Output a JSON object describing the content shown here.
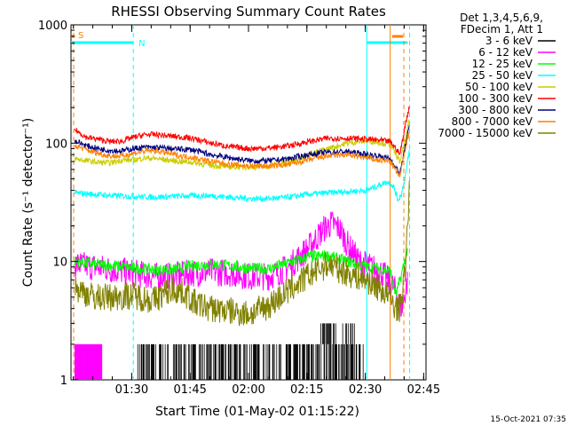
{
  "chart_data": {
    "type": "line",
    "title": "RHESSI Observing Summary Count Rates",
    "xlabel": "Start Time (01-May-02 01:15:22)",
    "ylabel": "Count Rate (s⁻¹ detector⁻¹)",
    "yscale": "log",
    "ylim": [
      1,
      1000
    ],
    "xlim_minutes": [
      0,
      87
    ],
    "y_ticks": [
      {
        "value": 1,
        "label": "1"
      },
      {
        "value": 10,
        "label": "10"
      },
      {
        "value": 100,
        "label": "100"
      },
      {
        "value": 1000,
        "label": "1000"
      }
    ],
    "x_ticks": [
      {
        "t": 14.6,
        "label": "01:30"
      },
      {
        "t": 29.6,
        "label": "01:45"
      },
      {
        "t": 44.6,
        "label": "02:00"
      },
      {
        "t": 59.6,
        "label": "02:15"
      },
      {
        "t": 74.6,
        "label": "02:30"
      },
      {
        "t": 89.6,
        "label": "02:45"
      }
    ],
    "legend": {
      "placement": "right",
      "header": [
        "Det 1,3,4,5,6,9,",
        "FDecim 1, Att 1"
      ]
    },
    "series": [
      {
        "name": "3 - 6 keV",
        "color": "#000000",
        "style": "sparse",
        "points": [
          [
            16,
            1.5
          ],
          [
            20,
            1.6
          ],
          [
            25,
            1.5
          ],
          [
            30,
            1.6
          ],
          [
            35,
            1.5
          ],
          [
            40,
            1.5
          ],
          [
            50,
            1.4
          ],
          [
            55,
            1.5
          ],
          [
            60,
            1.6
          ],
          [
            65,
            2.0
          ],
          [
            70,
            1.6
          ],
          [
            75,
            1.5
          ]
        ]
      },
      {
        "name": "6 - 12 keV",
        "color": "#ff00ff",
        "points": [
          [
            0,
            9.5
          ],
          [
            5,
            9
          ],
          [
            10,
            8.5
          ],
          [
            15,
            8
          ],
          [
            20,
            7.5
          ],
          [
            25,
            7.5
          ],
          [
            30,
            8
          ],
          [
            35,
            8.2
          ],
          [
            40,
            8
          ],
          [
            45,
            7.5
          ],
          [
            50,
            7.5
          ],
          [
            55,
            9
          ],
          [
            60,
            13
          ],
          [
            64,
            19
          ],
          [
            66,
            21
          ],
          [
            68,
            19
          ],
          [
            70,
            14
          ],
          [
            73,
            10
          ],
          [
            76,
            9
          ],
          [
            79,
            8
          ],
          [
            82,
            6
          ],
          [
            84,
            4
          ],
          [
            85.5,
            7
          ]
        ]
      },
      {
        "name": "12 - 25 keV",
        "color": "#00ff00",
        "points": [
          [
            0,
            10
          ],
          [
            5,
            9.5
          ],
          [
            10,
            9.2
          ],
          [
            15,
            8.8
          ],
          [
            20,
            8.5
          ],
          [
            25,
            8.5
          ],
          [
            30,
            9.2
          ],
          [
            35,
            9.5
          ],
          [
            40,
            9.2
          ],
          [
            45,
            8.7
          ],
          [
            50,
            8.7
          ],
          [
            55,
            9.8
          ],
          [
            60,
            11
          ],
          [
            65,
            11.2
          ],
          [
            70,
            10
          ],
          [
            75,
            9
          ],
          [
            78,
            8.8
          ],
          [
            81,
            8.3
          ],
          [
            82.5,
            5.2
          ],
          [
            84,
            8
          ],
          [
            85.5,
            13
          ]
        ]
      },
      {
        "name": "25 - 50 keV",
        "color": "#00ffff",
        "points": [
          [
            0,
            38
          ],
          [
            5,
            37
          ],
          [
            10,
            36
          ],
          [
            15,
            35.5
          ],
          [
            20,
            35
          ],
          [
            25,
            35.5
          ],
          [
            30,
            36
          ],
          [
            35,
            36
          ],
          [
            40,
            35
          ],
          [
            45,
            34
          ],
          [
            50,
            34
          ],
          [
            55,
            35
          ],
          [
            60,
            37
          ],
          [
            65,
            38
          ],
          [
            70,
            39
          ],
          [
            75,
            40
          ],
          [
            78,
            44
          ],
          [
            80,
            47
          ],
          [
            81,
            46
          ],
          [
            82,
            42
          ],
          [
            83,
            33
          ],
          [
            84,
            38
          ],
          [
            85,
            55
          ],
          [
            86,
            90
          ]
        ]
      },
      {
        "name": "50 - 100 keV",
        "color": "#cccc00",
        "points": [
          [
            0,
            74
          ],
          [
            3,
            71
          ],
          [
            6,
            69
          ],
          [
            9,
            68
          ],
          [
            12,
            72
          ],
          [
            15,
            72
          ],
          [
            18,
            75
          ],
          [
            21,
            74
          ],
          [
            24,
            72
          ],
          [
            27,
            70
          ],
          [
            30,
            69
          ],
          [
            35,
            65
          ],
          [
            40,
            63
          ],
          [
            45,
            63
          ],
          [
            50,
            64
          ],
          [
            55,
            70
          ],
          [
            60,
            80
          ],
          [
            65,
            90
          ],
          [
            70,
            100
          ],
          [
            75,
            105
          ],
          [
            78,
            102
          ],
          [
            81,
            97
          ],
          [
            82.5,
            80
          ],
          [
            83.5,
            70
          ],
          [
            85,
            110
          ],
          [
            86,
            160
          ]
        ]
      },
      {
        "name": "100 - 300 keV",
        "color": "#ff0000",
        "points": [
          [
            0,
            130
          ],
          [
            3,
            112
          ],
          [
            6,
            108
          ],
          [
            9,
            103
          ],
          [
            12,
            104
          ],
          [
            15,
            112
          ],
          [
            18,
            118
          ],
          [
            21,
            118
          ],
          [
            24,
            115
          ],
          [
            27,
            113
          ],
          [
            30,
            110
          ],
          [
            35,
            100
          ],
          [
            40,
            93
          ],
          [
            45,
            90
          ],
          [
            50,
            91
          ],
          [
            55,
            95
          ],
          [
            60,
            103
          ],
          [
            65,
            110
          ],
          [
            70,
            110
          ],
          [
            75,
            108
          ],
          [
            78,
            106
          ],
          [
            81,
            103
          ],
          [
            82.5,
            90
          ],
          [
            83.5,
            80
          ],
          [
            85,
            150
          ],
          [
            86,
            210
          ]
        ]
      },
      {
        "name": "300 - 800 keV",
        "color": "#000080",
        "points": [
          [
            0,
            105
          ],
          [
            3,
            95
          ],
          [
            6,
            90
          ],
          [
            9,
            87
          ],
          [
            12,
            86
          ],
          [
            15,
            90
          ],
          [
            18,
            92
          ],
          [
            21,
            92
          ],
          [
            24,
            90
          ],
          [
            27,
            89
          ],
          [
            30,
            88
          ],
          [
            35,
            80
          ],
          [
            40,
            75
          ],
          [
            45,
            71
          ],
          [
            50,
            71
          ],
          [
            55,
            74
          ],
          [
            60,
            80
          ],
          [
            65,
            84
          ],
          [
            70,
            85
          ],
          [
            75,
            80
          ],
          [
            78,
            78
          ],
          [
            81,
            74
          ],
          [
            82.5,
            62
          ],
          [
            83.5,
            55
          ],
          [
            85,
            100
          ],
          [
            86,
            140
          ]
        ]
      },
      {
        "name": "800 - 7000 keV",
        "color": "#ff8000",
        "points": [
          [
            0,
            95
          ],
          [
            3,
            88
          ],
          [
            6,
            82
          ],
          [
            9,
            78
          ],
          [
            12,
            78
          ],
          [
            15,
            82
          ],
          [
            18,
            86
          ],
          [
            21,
            86
          ],
          [
            24,
            82
          ],
          [
            27,
            78
          ],
          [
            30,
            76
          ],
          [
            35,
            70
          ],
          [
            40,
            66
          ],
          [
            45,
            64
          ],
          [
            50,
            64
          ],
          [
            55,
            66
          ],
          [
            60,
            72
          ],
          [
            65,
            78
          ],
          [
            70,
            80
          ],
          [
            75,
            75
          ],
          [
            78,
            72
          ],
          [
            81,
            70
          ],
          [
            82.5,
            58
          ],
          [
            83.5,
            52
          ],
          [
            85,
            95
          ],
          [
            86,
            130
          ]
        ]
      },
      {
        "name": "7000 - 15000 keV",
        "color": "#808000",
        "points": [
          [
            0,
            6
          ],
          [
            5,
            5
          ],
          [
            10,
            5
          ],
          [
            15,
            5.2
          ],
          [
            20,
            4.7
          ],
          [
            25,
            5.8
          ],
          [
            28,
            5.5
          ],
          [
            31,
            4.4
          ],
          [
            35,
            4.0
          ],
          [
            40,
            3.8
          ],
          [
            45,
            3.6
          ],
          [
            50,
            4.3
          ],
          [
            55,
            5.7
          ],
          [
            60,
            7.6
          ],
          [
            65,
            9.5
          ],
          [
            70,
            8
          ],
          [
            75,
            7
          ],
          [
            78,
            6
          ],
          [
            81,
            5
          ],
          [
            82,
            4.2
          ],
          [
            83.5,
            4
          ],
          [
            85,
            9
          ],
          [
            86,
            50
          ]
        ]
      }
    ],
    "flag_bars": [
      {
        "label": "S",
        "color": "#ff8000",
        "segments": [
          [
            -1,
            0
          ]
        ]
      },
      {
        "label": "N",
        "color": "#00ffff",
        "segments": [
          [
            -1,
            15
          ],
          [
            75,
            85.5
          ]
        ]
      }
    ],
    "markers": [
      {
        "t": 15,
        "color": "#00ffff",
        "dashed": true
      },
      {
        "t": 75,
        "color": "#00ffff",
        "dashed": false
      },
      {
        "t": 81,
        "color": "#ff8000",
        "dashed": false
      },
      {
        "t": 84.5,
        "color": "#ff8000",
        "dashed": true
      },
      {
        "t": 86,
        "color": "#00ffff",
        "dashed": true
      }
    ],
    "legend_swatch_color_note": "see series colors"
  },
  "timestamp": "15-Oct-2021 07:35"
}
